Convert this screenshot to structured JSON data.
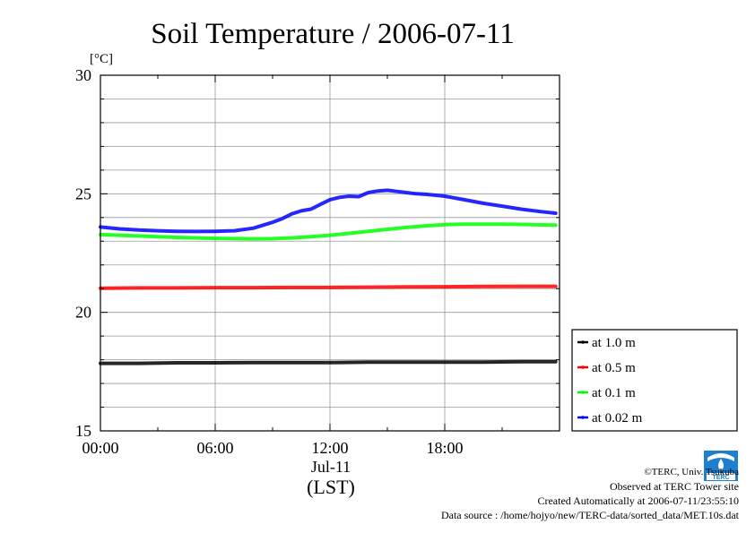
{
  "chart_data": {
    "type": "line",
    "title": "Soil Temperature / 2006-07-11",
    "ylabel": "[°C]",
    "ylim": [
      15,
      30
    ],
    "yticks": [
      15,
      20,
      25,
      30
    ],
    "y_minor_step": 1,
    "xlim": [
      0,
      24
    ],
    "xticks": [
      {
        "value": 0,
        "label": "00:00"
      },
      {
        "value": 6,
        "label": "06:00"
      },
      {
        "value": 12,
        "label": "12:00"
      },
      {
        "value": 18,
        "label": "18:00"
      }
    ],
    "xdate_label": "Jul-11",
    "xlabel": "(LST)",
    "grid": true,
    "legend_position": "right",
    "series": [
      {
        "name": "at 1.0 m",
        "color": "#000000",
        "x": [
          0,
          2,
          4,
          6,
          8,
          10,
          12,
          14,
          16,
          18,
          20,
          22,
          23.8
        ],
        "y": [
          17.85,
          17.85,
          17.87,
          17.87,
          17.88,
          17.88,
          17.88,
          17.9,
          17.9,
          17.9,
          17.9,
          17.92,
          17.92
        ]
      },
      {
        "name": "at 0.5 m",
        "color": "#ff0000",
        "x": [
          0,
          2,
          4,
          6,
          8,
          10,
          12,
          14,
          16,
          18,
          20,
          22,
          23.8
        ],
        "y": [
          21.02,
          21.03,
          21.03,
          21.04,
          21.04,
          21.05,
          21.05,
          21.06,
          21.07,
          21.08,
          21.09,
          21.1,
          21.1
        ]
      },
      {
        "name": "at 0.1 m",
        "color": "#00ff00",
        "x": [
          0,
          1,
          2,
          3,
          4,
          5,
          6,
          7,
          8,
          9,
          10,
          11,
          12,
          13,
          14,
          15,
          16,
          17,
          18,
          19,
          20,
          21,
          22,
          23,
          23.8
        ],
        "y": [
          23.28,
          23.25,
          23.22,
          23.19,
          23.16,
          23.14,
          23.12,
          23.11,
          23.1,
          23.11,
          23.14,
          23.19,
          23.25,
          23.33,
          23.42,
          23.5,
          23.58,
          23.65,
          23.7,
          23.72,
          23.72,
          23.72,
          23.71,
          23.69,
          23.68
        ]
      },
      {
        "name": "at 0.02 m",
        "color": "#0000ff",
        "x": [
          0,
          1,
          2,
          3,
          4,
          5,
          6,
          7,
          8,
          9,
          9.5,
          10,
          10.5,
          11,
          11.5,
          12,
          12.5,
          13,
          13.5,
          14,
          14.5,
          15,
          15.5,
          16,
          16.5,
          17,
          18,
          19,
          20,
          21,
          22,
          23,
          23.8
        ],
        "y": [
          23.6,
          23.52,
          23.47,
          23.44,
          23.42,
          23.41,
          23.42,
          23.44,
          23.55,
          23.8,
          23.95,
          24.15,
          24.28,
          24.35,
          24.55,
          24.75,
          24.85,
          24.9,
          24.88,
          25.05,
          25.12,
          25.15,
          25.1,
          25.05,
          25.0,
          24.98,
          24.9,
          24.75,
          24.6,
          24.48,
          24.35,
          24.25,
          24.18
        ]
      }
    ]
  },
  "footer": {
    "copyright": "©TERC, Univ. Tsukuba",
    "site": "Observed at TERC Tower site",
    "created": "Created Automatically at 2006-07-11/23:55:10",
    "source": "Data source : /home/hojyo/new/TERC-data/sorted_data/MET.10s.dat"
  },
  "logo_text": "TERC"
}
